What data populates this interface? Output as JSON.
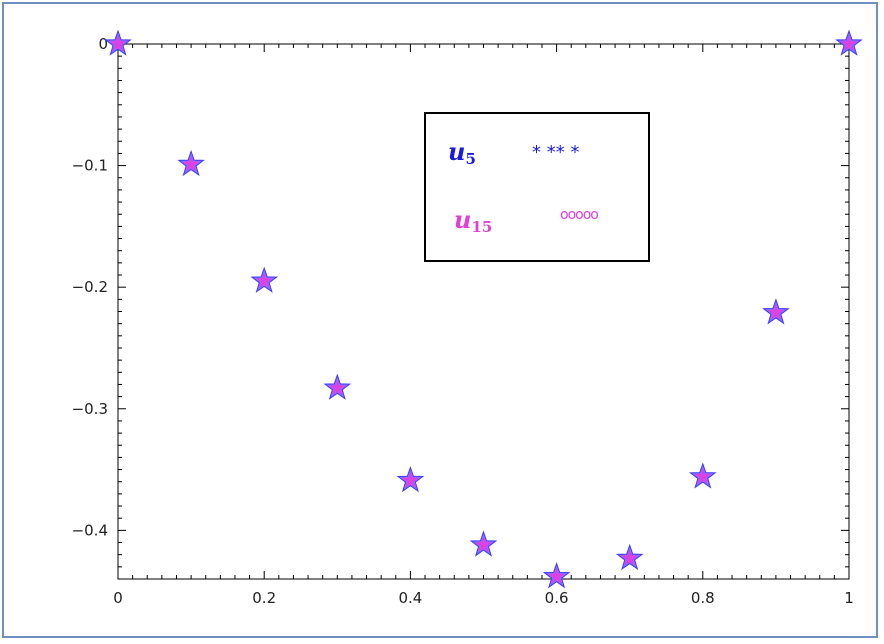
{
  "chart_data": {
    "type": "scatter",
    "xlim": [
      0,
      1
    ],
    "ylim": [
      -0.44,
      0
    ],
    "x_ticks": [
      0,
      0.2,
      0.4,
      0.6,
      0.8,
      1
    ],
    "x_tick_labels": [
      "0",
      "0.2",
      "0.4",
      "0.6",
      "0.8",
      "1"
    ],
    "y_ticks": [
      0,
      -0.1,
      -0.2,
      -0.3,
      -0.4
    ],
    "y_tick_labels": [
      "0",
      "-0.1",
      "-0.2",
      "-0.3",
      "-0.4"
    ],
    "grid": false,
    "legend_position": "top-center",
    "series": [
      {
        "name": "u5",
        "marker": "star",
        "color": "#3b3bff",
        "x": [
          0,
          0.1,
          0.2,
          0.3,
          0.4,
          0.5,
          0.6,
          0.7,
          0.8,
          0.9,
          1
        ],
        "y": [
          0,
          -0.099,
          -0.195,
          -0.283,
          -0.359,
          -0.412,
          -0.438,
          -0.423,
          -0.356,
          -0.221,
          0
        ]
      },
      {
        "name": "u15",
        "marker": "circle",
        "color": "#e040e0",
        "x": [
          0,
          0.1,
          0.2,
          0.3,
          0.4,
          0.5,
          0.6,
          0.7,
          0.8,
          0.9,
          1
        ],
        "y": [
          0,
          -0.099,
          -0.195,
          -0.283,
          -0.359,
          -0.412,
          -0.438,
          -0.423,
          -0.356,
          -0.221,
          0
        ]
      }
    ]
  },
  "legend": {
    "u5": {
      "base": "u",
      "sub": "5",
      "marker_text": "* ** *",
      "color": "#1a1ae6"
    },
    "u15": {
      "base": "u",
      "sub": "15",
      "marker_text": "ooooo",
      "color": "#e040d8"
    }
  }
}
